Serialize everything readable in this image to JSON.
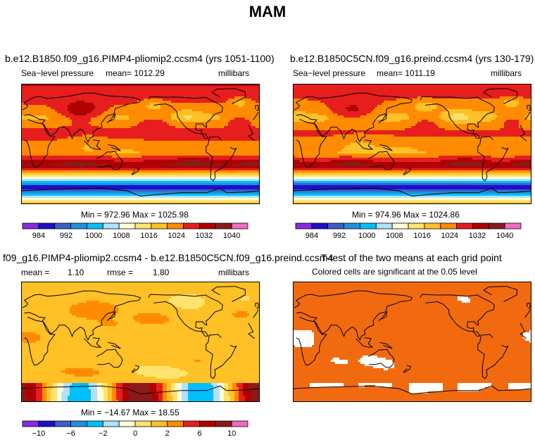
{
  "figure": {
    "title": "MAM"
  },
  "panels": {
    "pliocene": {
      "title": "b.e12.B1850.f09_g16.PIMP4-pliomip2.ccsm4 (yrs 1051-1100)",
      "variable": "Sea−level pressure",
      "mean_text": "mean=  1012.29",
      "units": "millibars",
      "minmax_text": "Min = 972.96  Max = 1025.98",
      "mean": 1012.29,
      "min": 972.96,
      "max": 1025.98
    },
    "preindustrial": {
      "title": "b.e12.B1850C5CN.f09_g16.preind.ccsm4 (yrs 130-179)",
      "variable": "Sea−level pressure",
      "mean_text": "mean=  1011.19",
      "units": "millibars",
      "minmax_text": "Min = 974.96  Max = 1024.86",
      "mean": 1011.19,
      "min": 974.96,
      "max": 1024.86
    },
    "difference": {
      "title": "f09_g16.PIMP4-pliomip2.ccsm4 - b.e12.B1850C5CN.f09_g16.preind.ccsm4",
      "mean_label": "mean =",
      "mean_value": "1.10",
      "rmse_label": "rmse =",
      "rmse_value": "1.80",
      "units": "millibars",
      "minmax_text": "Min = −14.67  Max =   18.55",
      "mean": 1.1,
      "rmse": 1.8,
      "min": -14.67,
      "max": 18.55
    },
    "ttest": {
      "title": "T-test of the two means at each grid point",
      "subtitle": "Colored cells are significant at the 0.05 level",
      "fill_color": "#F26A10"
    }
  },
  "colorbars": {
    "slp": {
      "ticks": [
        "984",
        "992",
        "1000",
        "1008",
        "1016",
        "1024",
        "1032",
        "1040"
      ],
      "colors": [
        "#8A2BE2",
        "#1E10C8",
        "#3A5FCD",
        "#1F90DD",
        "#00BFFF",
        "#B0E2FF",
        "#FFFFD6",
        "#FFE36E",
        "#FFC125",
        "#FF8C00",
        "#E61E1E",
        "#B00000",
        "#8B1A1A",
        "#F36AC4"
      ]
    },
    "diff": {
      "ticks": [
        "−10",
        "−6",
        "−2",
        "0",
        "2",
        "6",
        "10"
      ],
      "colors": [
        "#8A2BE2",
        "#1E10C8",
        "#3A5FCD",
        "#1F90DD",
        "#00BFFF",
        "#B0E2FF",
        "#FFFFD6",
        "#FFE36E",
        "#FFC125",
        "#FF8C00",
        "#E61E1E",
        "#B00000",
        "#8B1A1A",
        "#F36AC4"
      ]
    }
  }
}
